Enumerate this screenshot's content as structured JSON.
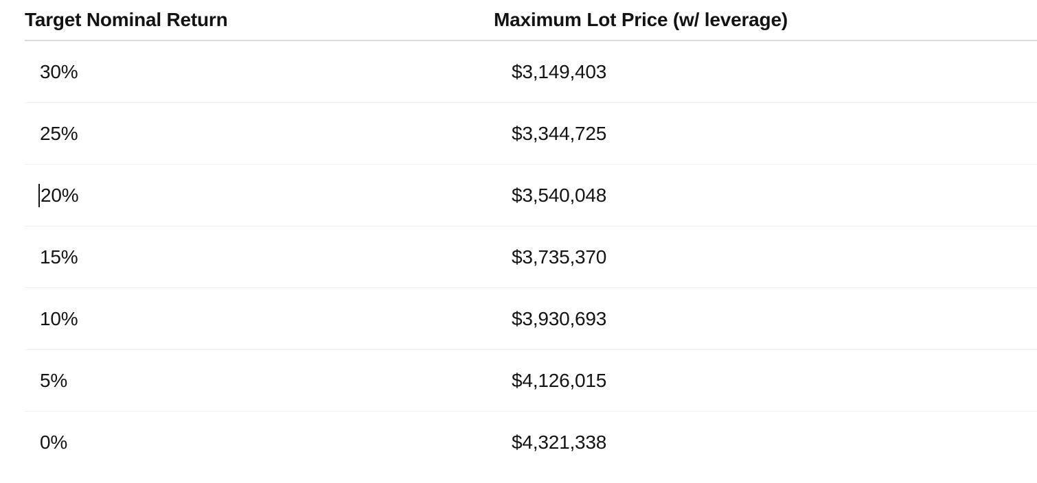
{
  "chart_data": {
    "type": "table",
    "columns": [
      "Target Nominal Return",
      "Maximum Lot Price (w/ leverage)"
    ],
    "rows": [
      [
        "30%",
        "$3,149,403"
      ],
      [
        "25%",
        "$3,344,725"
      ],
      [
        "20%",
        "$3,540,048"
      ],
      [
        "15%",
        "$3,735,370"
      ],
      [
        "10%",
        "$3,930,693"
      ],
      [
        "5%",
        "$4,126,015"
      ],
      [
        "0%",
        "$4,321,338"
      ]
    ]
  },
  "ui": {
    "text_cursor": {
      "visible": true,
      "row_index": 2,
      "column": 0
    }
  },
  "colors": {
    "background": "#ffffff",
    "text": "#131313",
    "header_divider": "#dadada",
    "row_divider": "#f0f0f0",
    "caret": "#131313"
  }
}
